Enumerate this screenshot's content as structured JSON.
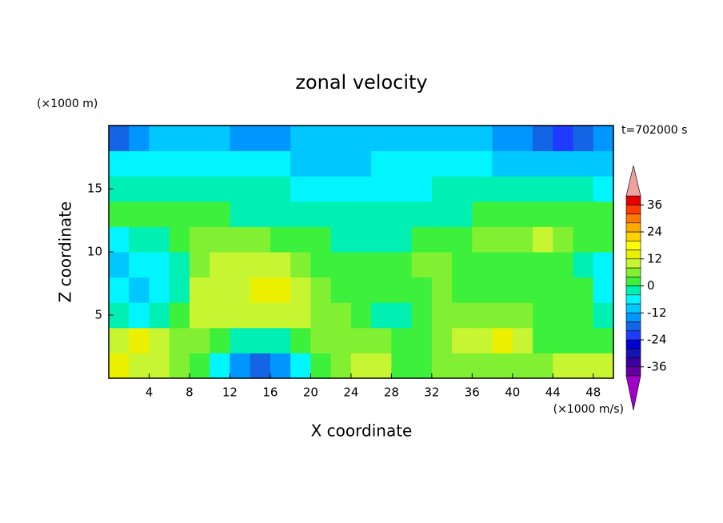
{
  "chart_data": {
    "type": "contour",
    "title": "zonal velocity",
    "xlabel": "X coordinate",
    "ylabel": "Z coordinate",
    "yunit": "(×1000 m)",
    "xunit": "(×1000 m/s)",
    "time_label": "t=702000 s",
    "xlim": [
      0,
      50
    ],
    "ylim": [
      0,
      20
    ],
    "xticks": [
      4,
      8,
      12,
      16,
      20,
      24,
      28,
      32,
      36,
      40,
      44,
      48
    ],
    "yticks": [
      5,
      10,
      15
    ],
    "x": [
      1,
      3,
      5,
      7,
      9,
      11,
      13,
      15,
      17,
      19,
      21,
      23,
      25,
      27,
      29,
      31,
      33,
      35,
      37,
      39,
      41,
      43,
      45,
      47,
      49
    ],
    "y": [
      1,
      3,
      5,
      7,
      9,
      11,
      13,
      15,
      17,
      19
    ],
    "z": [
      [
        14,
        10,
        8,
        4,
        2,
        -8,
        -14,
        -20,
        -14,
        -6,
        2,
        6,
        10,
        8,
        2,
        2,
        4,
        6,
        6,
        6,
        4,
        6,
        8,
        10,
        10
      ],
      [
        8,
        12,
        10,
        6,
        4,
        2,
        -2,
        -4,
        -2,
        2,
        4,
        4,
        6,
        4,
        2,
        2,
        6,
        8,
        10,
        12,
        10,
        2,
        2,
        2,
        2
      ],
      [
        -4,
        -6,
        -4,
        2,
        8,
        10,
        10,
        10,
        10,
        10,
        6,
        4,
        2,
        -2,
        -2,
        2,
        4,
        4,
        6,
        6,
        4,
        2,
        2,
        2,
        -4
      ],
      [
        -8,
        -10,
        -8,
        -2,
        8,
        10,
        10,
        12,
        12,
        10,
        4,
        2,
        2,
        2,
        2,
        2,
        4,
        2,
        2,
        2,
        2,
        2,
        2,
        2,
        -6
      ],
      [
        -10,
        -8,
        -6,
        -2,
        4,
        8,
        10,
        10,
        8,
        6,
        2,
        2,
        2,
        2,
        2,
        6,
        4,
        2,
        2,
        2,
        2,
        2,
        2,
        -2,
        -6
      ],
      [
        -6,
        -4,
        -2,
        2,
        4,
        6,
        6,
        4,
        2,
        2,
        2,
        -2,
        -2,
        -2,
        -2,
        2,
        2,
        2,
        4,
        6,
        6,
        8,
        6,
        2,
        2
      ],
      [
        2,
        2,
        2,
        2,
        2,
        2,
        -2,
        -2,
        -2,
        -2,
        -2,
        -2,
        -2,
        -2,
        -2,
        -2,
        -2,
        -2,
        2,
        2,
        2,
        2,
        2,
        2,
        2
      ],
      [
        -2,
        -2,
        -2,
        -2,
        -2,
        -2,
        -2,
        -2,
        -2,
        -6,
        -6,
        -6,
        -6,
        -6,
        -6,
        -6,
        -2,
        -2,
        -2,
        -2,
        -2,
        -2,
        -2,
        -2,
        -6
      ],
      [
        -6,
        -6,
        -6,
        -6,
        -6,
        -6,
        -6,
        -6,
        -6,
        -10,
        -10,
        -10,
        -10,
        -6,
        -6,
        -6,
        -6,
        -6,
        -6,
        -10,
        -10,
        -10,
        -10,
        -10,
        -10
      ],
      [
        -18,
        -14,
        -10,
        -10,
        -10,
        -10,
        -14,
        -14,
        -14,
        -10,
        -10,
        -10,
        -10,
        -10,
        -10,
        -10,
        -10,
        -10,
        -10,
        -14,
        -14,
        -18,
        -22,
        -18,
        -14
      ]
    ],
    "colorbar": {
      "levels": [
        -40,
        -36,
        -32,
        -28,
        -24,
        -20,
        -16,
        -12,
        -8,
        -4,
        0,
        4,
        8,
        12,
        16,
        20,
        24,
        28,
        32,
        36,
        40
      ],
      "colors": [
        "#6400a0",
        "#3c00a0",
        "#1414b4",
        "#0000d2",
        "#1e3cff",
        "#1464e6",
        "#0096ff",
        "#00c8ff",
        "#00f5ff",
        "#00f0b4",
        "#3cf03c",
        "#82f032",
        "#c8f532",
        "#ebf000",
        "#ffff00",
        "#ffd200",
        "#ffaa00",
        "#ff7800",
        "#ff3c00",
        "#e60000"
      ],
      "under_color": "#a000c8",
      "over_color": "#f0a0a0",
      "ticks": [
        -36,
        -24,
        -12,
        0,
        12,
        24,
        36
      ]
    }
  }
}
